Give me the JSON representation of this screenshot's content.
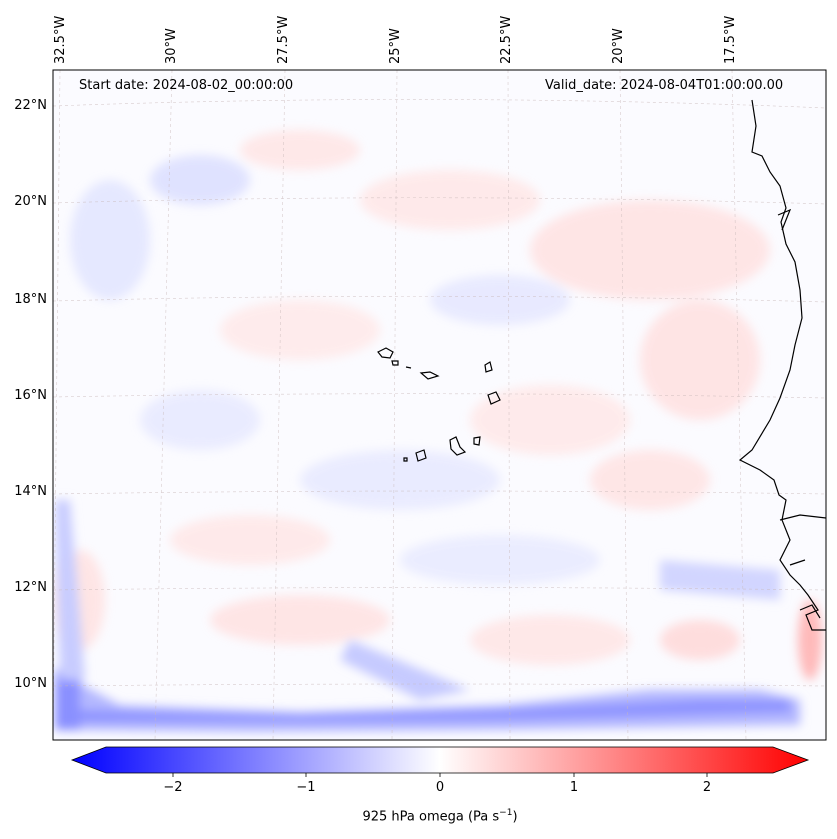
{
  "map": {
    "start_date": "Start date: 2024-08-02_00:00:00",
    "valid_date": "Valid_date: 2024-08-04T01:00:00.00",
    "lat_labels": [
      "22°N",
      "20°N",
      "18°N",
      "16°N",
      "14°N",
      "12°N",
      "10°N"
    ],
    "lon_labels": [
      "32.5°W",
      "30°W",
      "27.5°W",
      "25°W",
      "22.5°W",
      "20°W",
      "17.5°W"
    ]
  },
  "colorbar": {
    "ticks": [
      "−2",
      "−1",
      "0",
      "1",
      "2"
    ],
    "label_prefix": "925 hPa omega (Pa s",
    "label_sup": "−1",
    "label_suffix": ")",
    "colors": {
      "negative": "#0000ff",
      "zero": "#ffffff",
      "positive": "#ff0000"
    }
  }
}
